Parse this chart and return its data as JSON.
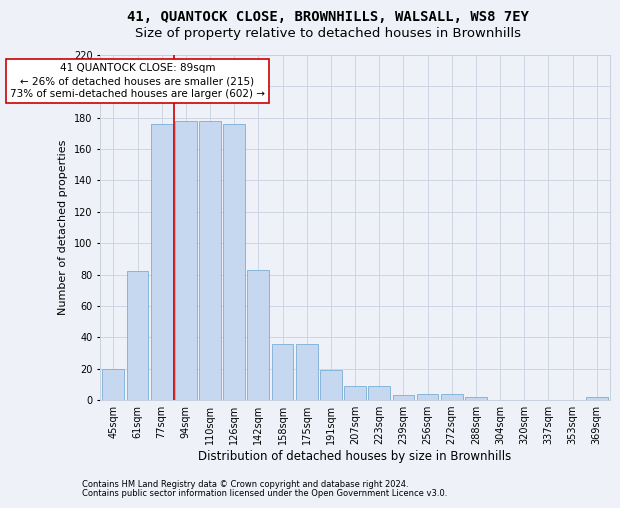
{
  "title": "41, QUANTOCK CLOSE, BROWNHILLS, WALSALL, WS8 7EY",
  "subtitle": "Size of property relative to detached houses in Brownhills",
  "xlabel": "Distribution of detached houses by size in Brownhills",
  "ylabel": "Number of detached properties",
  "categories": [
    "45sqm",
    "61sqm",
    "77sqm",
    "94sqm",
    "110sqm",
    "126sqm",
    "142sqm",
    "158sqm",
    "175sqm",
    "191sqm",
    "207sqm",
    "223sqm",
    "239sqm",
    "256sqm",
    "272sqm",
    "288sqm",
    "304sqm",
    "320sqm",
    "337sqm",
    "353sqm",
    "369sqm"
  ],
  "values": [
    20,
    82,
    176,
    178,
    178,
    176,
    83,
    36,
    36,
    19,
    9,
    9,
    3,
    4,
    4,
    2,
    0,
    0,
    0,
    0,
    2
  ],
  "bar_color": "#c5d8f0",
  "bar_edge_color": "#7aaed6",
  "grid_color": "#c8d0df",
  "background_color": "#eef2f8",
  "vline_x": 2.5,
  "vline_color": "#cc0000",
  "annotation_text": "41 QUANTOCK CLOSE: 89sqm\n← 26% of detached houses are smaller (215)\n73% of semi-detached houses are larger (602) →",
  "annotation_box_facecolor": "#ffffff",
  "annotation_box_edgecolor": "#cc0000",
  "ylim": [
    0,
    220
  ],
  "yticks": [
    0,
    20,
    40,
    60,
    80,
    100,
    120,
    140,
    160,
    180,
    200,
    220
  ],
  "footer1": "Contains HM Land Registry data © Crown copyright and database right 2024.",
  "footer2": "Contains public sector information licensed under the Open Government Licence v3.0.",
  "title_fontsize": 10,
  "subtitle_fontsize": 9.5,
  "xlabel_fontsize": 8.5,
  "ylabel_fontsize": 8,
  "tick_fontsize": 7,
  "ann_fontsize": 7.5,
  "footer_fontsize": 6.0
}
